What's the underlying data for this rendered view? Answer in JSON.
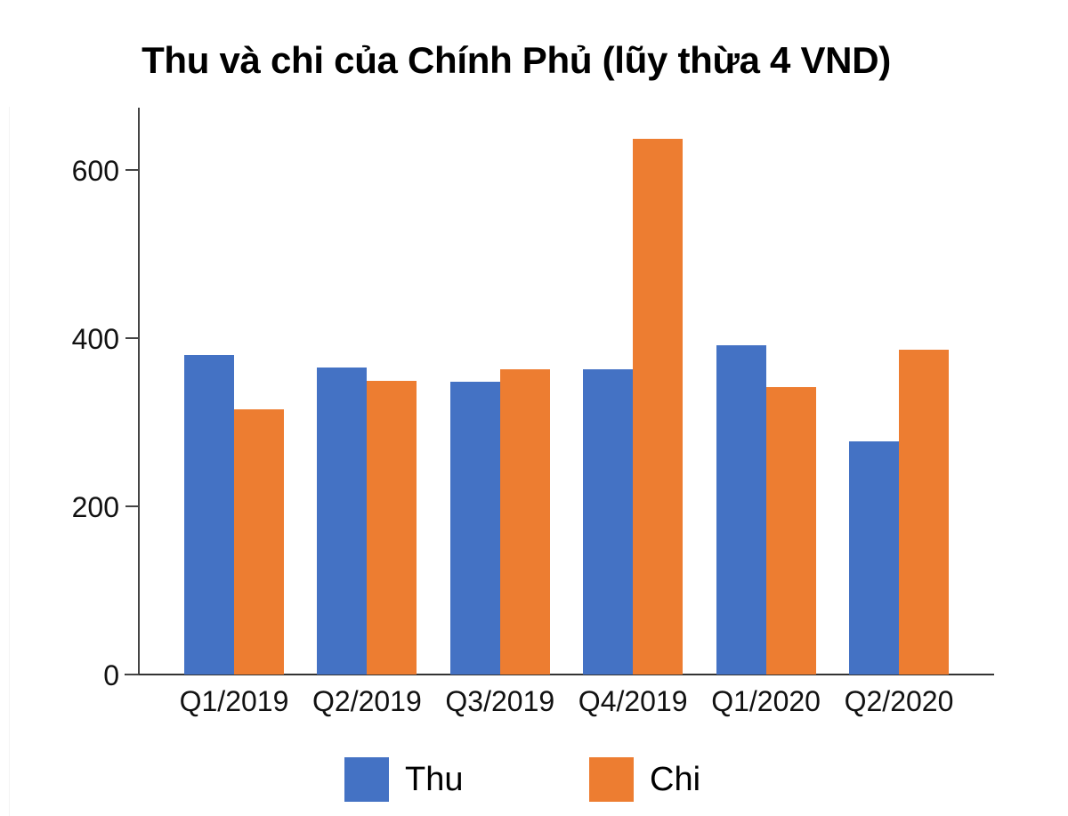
{
  "chart_data": {
    "type": "bar",
    "title": "Thu và chi của Chính Phủ (lũy thừa 4 VND)",
    "xlabel": "",
    "ylabel": "",
    "categories": [
      "Q1/2019",
      "Q2/2019",
      "Q3/2019",
      "Q4/2019",
      "Q1/2020",
      "Q2/2020"
    ],
    "series": [
      {
        "name": "Thu",
        "color": "#4472C4",
        "values": [
          380,
          365,
          348,
          363,
          392,
          277
        ]
      },
      {
        "name": "Chi",
        "color": "#ED7D31",
        "values": [
          315,
          349,
          363,
          637,
          342,
          386
        ]
      }
    ],
    "ylim": [
      0,
      675
    ],
    "yticks": [
      0,
      200,
      400,
      600
    ],
    "ytick_labels": [
      "0",
      "200",
      "400",
      "600"
    ],
    "grid": false,
    "legend_position": "bottom"
  },
  "legend": {
    "items": [
      {
        "label": "Thu",
        "color": "#4472C4"
      },
      {
        "label": "Chi",
        "color": "#ED7D31"
      }
    ]
  }
}
